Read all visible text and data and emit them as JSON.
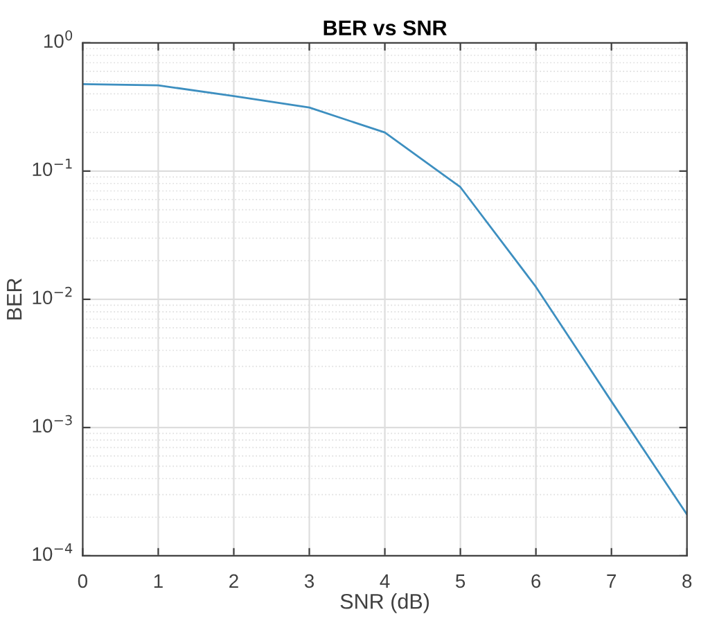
{
  "chart_data": {
    "type": "line",
    "title": "BER vs SNR",
    "xlabel": "SNR (dB)",
    "ylabel": "BER",
    "x": [
      0,
      1,
      2,
      3,
      4,
      5,
      6,
      7,
      8
    ],
    "series": [
      {
        "color": "#3d8fc0",
        "values": [
          0.477,
          0.466,
          0.385,
          0.313,
          0.2,
          0.075,
          0.0125,
          0.0016,
          0.00021
        ]
      }
    ],
    "log": "y",
    "xlim": [
      0,
      8
    ],
    "ylim": [
      0.0001,
      1
    ],
    "xticks": [
      0,
      1,
      2,
      3,
      4,
      5,
      6,
      7,
      8
    ],
    "yticks": [
      {
        "value": 0.0001,
        "label": "10$^{−4}$"
      },
      {
        "value": 0.001,
        "label": "10$^{−3}$"
      },
      {
        "value": 0.01,
        "label": "10$^{−2}$"
      },
      {
        "value": 0.1,
        "label": "10$^{−1}$"
      },
      {
        "value": 1,
        "label": "10$^{0}$"
      }
    ],
    "grid": true,
    "line_style": "solid",
    "marker": "none"
  }
}
